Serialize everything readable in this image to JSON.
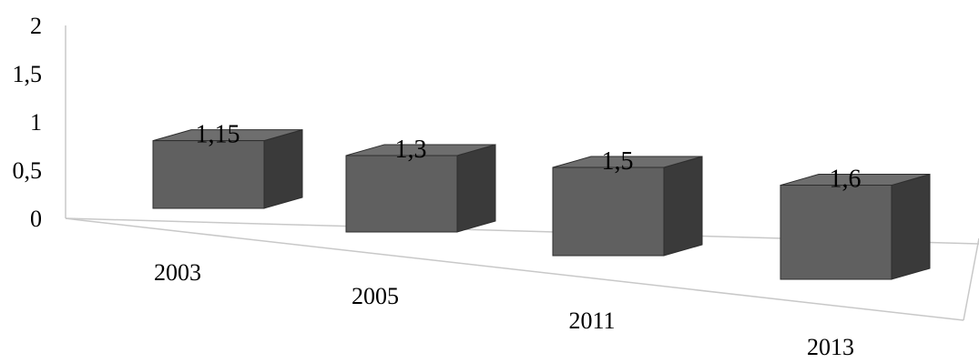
{
  "chart_data": {
    "type": "bar",
    "title": "",
    "xlabel": "",
    "ylabel": "",
    "categories": [
      "2003",
      "2005",
      "2011",
      "2013"
    ],
    "values": [
      1.15,
      1.3,
      1.5,
      1.6
    ],
    "data_labels": [
      "1,15",
      "1,3",
      "1,5",
      "1,6"
    ],
    "ylim": [
      0,
      2
    ],
    "y_ticks": [
      0,
      0.5,
      1,
      1.5,
      2
    ],
    "y_tick_labels": [
      "0",
      "0,5",
      "1",
      "1,5",
      "2"
    ],
    "grid": false,
    "legend": "none",
    "colors": {
      "bar_front": "#606060",
      "bar_top": "#6e6e6e",
      "bar_side": "#3a3a3a",
      "bar_edge": "#2e2e2e",
      "axis": "#c8c8c8"
    }
  }
}
